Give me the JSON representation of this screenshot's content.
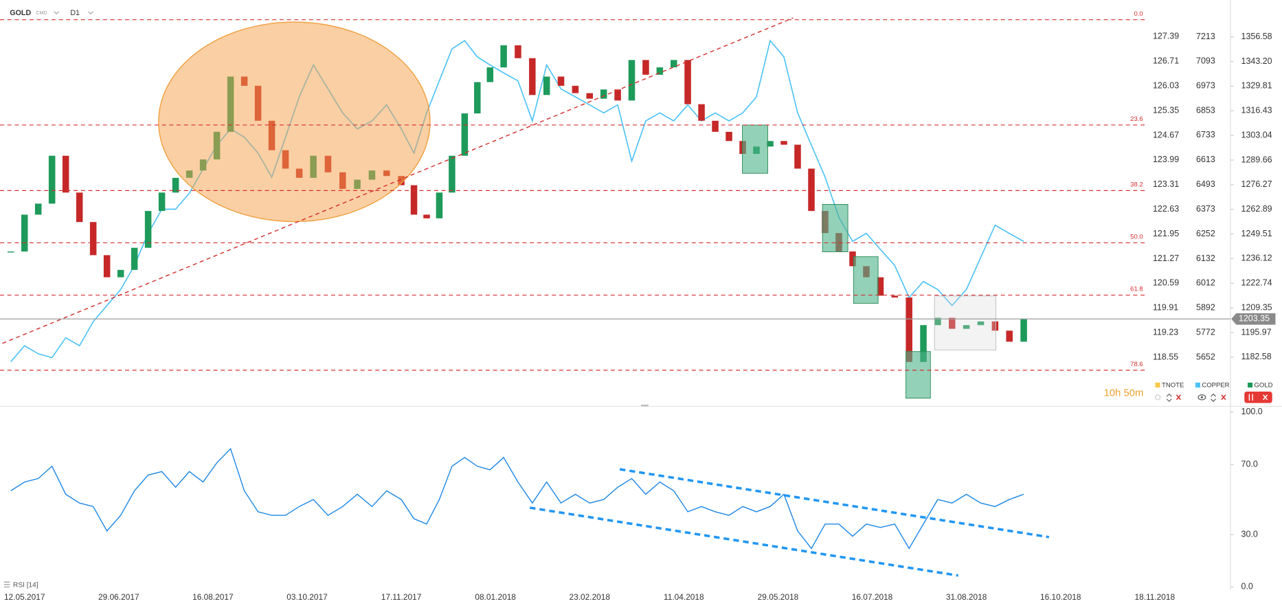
{
  "chart_data": [
    {
      "type": "candlestick",
      "title": "GOLD",
      "subtitle": "CMD",
      "interval": "D1",
      "countdown": "10h 50m",
      "x": [
        "05.05.2017",
        "12.05.2017",
        "19.05.2017",
        "26.05.2017",
        "02.06.2017",
        "09.06.2017",
        "16.06.2017",
        "23.06.2017",
        "30.06.2017",
        "07.07.2017",
        "14.07.2017",
        "21.07.2017",
        "28.07.2017",
        "04.08.2017",
        "11.08.2017",
        "18.08.2017",
        "25.08.2017",
        "01.09.2017",
        "08.09.2017",
        "15.09.2017",
        "22.09.2017",
        "29.09.2017",
        "06.10.2017",
        "13.10.2017",
        "20.10.2017",
        "27.10.2017",
        "03.11.2017",
        "10.11.2017",
        "17.11.2017",
        "24.11.2017",
        "01.12.2017",
        "08.12.2017",
        "15.12.2017",
        "22.12.2017",
        "29.12.2017",
        "05.01.2018",
        "12.01.2018",
        "19.01.2018",
        "26.01.2018",
        "02.02.2018",
        "09.02.2018",
        "16.02.2018",
        "23.02.2018",
        "02.03.2018",
        "09.03.2018",
        "16.03.2018",
        "23.03.2018",
        "30.03.2018",
        "06.04.2018",
        "13.04.2018",
        "20.04.2018",
        "27.04.2018",
        "04.05.2018",
        "11.05.2018",
        "18.05.2018",
        "25.05.2018",
        "01.06.2018",
        "08.06.2018",
        "15.06.2018",
        "22.06.2018",
        "29.06.2018",
        "06.07.2018",
        "13.07.2018",
        "20.07.2018",
        "27.07.2018",
        "03.08.2018",
        "10.08.2018",
        "17.08.2018",
        "24.08.2018",
        "31.08.2018",
        "07.09.2018",
        "14.09.2018",
        "21.09.2018",
        "28.09.2018"
      ],
      "xticks": [
        "12.05.2017",
        "29.06.2017",
        "16.08.2017",
        "03.10.2017",
        "17.11.2017",
        "08.01.2018",
        "23.02.2018",
        "11.04.2018",
        "29.05.2018",
        "16.07.2018",
        "31.08.2018",
        "16.10.2018",
        "18.11.2018"
      ],
      "series": [
        {
          "name": "TNOTE",
          "color": "#f7c948",
          "axis": "y3",
          "visible": false
        },
        {
          "name": "COPPER",
          "color": "#4fc3f7",
          "axis": "y2",
          "style": "line",
          "values": [
            5630,
            5708,
            5669,
            5650,
            5747,
            5708,
            5825,
            5904,
            5982,
            6099,
            6255,
            6373,
            6373,
            6451,
            6568,
            6685,
            6764,
            6724,
            6646,
            6529,
            6724,
            6920,
            7076,
            6959,
            6842,
            6764,
            6803,
            6881,
            6764,
            6646,
            6842,
            6998,
            7154,
            7194,
            7115,
            7076,
            7037,
            6998,
            6803,
            7076,
            6959,
            6920,
            6881,
            6842,
            6881,
            6607,
            6803,
            6842,
            6803,
            6881,
            6803,
            6842,
            6803,
            6842,
            6920,
            7194,
            7115,
            6842,
            6685,
            6529,
            6334,
            6216,
            6255,
            6177,
            6099,
            5943,
            6021,
            5982,
            5904,
            5982,
            6138,
            6295,
            6255,
            6216
          ]
        },
        {
          "name": "GOLD",
          "color": "#1e9a5a",
          "down_color": "#c62828",
          "axis": "y",
          "style": "candle",
          "values": [
            1240,
            1260,
            1266,
            1292,
            1272,
            1256,
            1238,
            1226,
            1230,
            1242,
            1262,
            1272,
            1280,
            1284,
            1290,
            1305,
            1335,
            1330,
            1311,
            1295,
            1285,
            1280,
            1292,
            1283,
            1274,
            1279,
            1284,
            1281,
            1276,
            1260,
            1258,
            1272,
            1292,
            1315,
            1332,
            1340,
            1352,
            1345,
            1325,
            1335,
            1330,
            1326,
            1323,
            1328,
            1322,
            1344,
            1336,
            1340,
            1344,
            1320,
            1311,
            1305,
            1300,
            1293,
            1297,
            1300,
            1298,
            1285,
            1262,
            1250,
            1240,
            1232,
            1226,
            1216,
            1215,
            1180,
            1200,
            1204,
            1198,
            1200,
            1202,
            1197,
            1191,
            1203.35
          ]
        }
      ],
      "ylim": [
        1155.9,
        1376.6
      ],
      "yticks": [
        1356.58,
        {
          "value": 1343.2,
          "label": "1343.20"
        },
        1329.81,
        1316.43,
        1303.04,
        1289.66,
        1276.27,
        1262.89,
        1249.51,
        1236.12,
        1222.74,
        1209.35,
        1195.97,
        1182.58
      ],
      "y2lim": [
        5413,
        7392
      ],
      "y2ticks": [
        7213,
        7093,
        6973,
        6853,
        6733,
        6613,
        6493,
        6373,
        6252,
        6132,
        6012,
        5892,
        5772,
        5652
      ],
      "y3lim": [
        117.2,
        128.4
      ],
      "y3ticks": [
        127.39,
        126.71,
        126.03,
        125.35,
        124.67,
        123.99,
        123.31,
        122.63,
        121.95,
        121.27,
        120.59,
        119.91,
        119.23,
        118.55
      ],
      "last_price": 1203.35,
      "fib_levels": [
        {
          "label": "0.0",
          "value": 1365.9
        },
        {
          "label": "23.6",
          "value": 1308.7
        },
        {
          "label": "38.2",
          "value": 1273.1
        },
        {
          "label": "50.0",
          "value": 1244.7
        },
        {
          "label": "61.8",
          "value": 1216.3
        },
        {
          "label": "78.6",
          "value": 1175.5
        }
      ]
    },
    {
      "type": "line",
      "title": "RSI [14]",
      "color": "#1e88e5",
      "values": [
        55,
        60,
        62,
        69,
        53,
        48,
        46,
        32,
        41,
        55,
        64,
        66,
        57,
        66,
        60,
        71,
        79,
        55,
        43,
        41,
        41,
        46,
        50,
        41,
        46,
        53,
        46,
        55,
        50,
        39,
        36,
        50,
        69,
        74,
        69,
        67,
        74,
        60,
        48,
        60,
        48,
        53,
        48,
        50,
        57,
        62,
        53,
        60,
        55,
        43,
        46,
        43,
        41,
        46,
        43,
        46,
        53,
        32,
        22,
        36,
        36,
        29,
        36,
        34,
        36,
        22,
        36,
        50,
        48,
        53,
        48,
        46,
        50,
        53
      ],
      "ylim": [
        0,
        100
      ],
      "yticks": [
        {
          "value": 100,
          "label": "100.0"
        },
        {
          "value": 70,
          "label": "70.0"
        },
        {
          "value": 30,
          "label": "30.0"
        },
        {
          "value": 0,
          "label": "0.0"
        }
      ]
    }
  ]
}
